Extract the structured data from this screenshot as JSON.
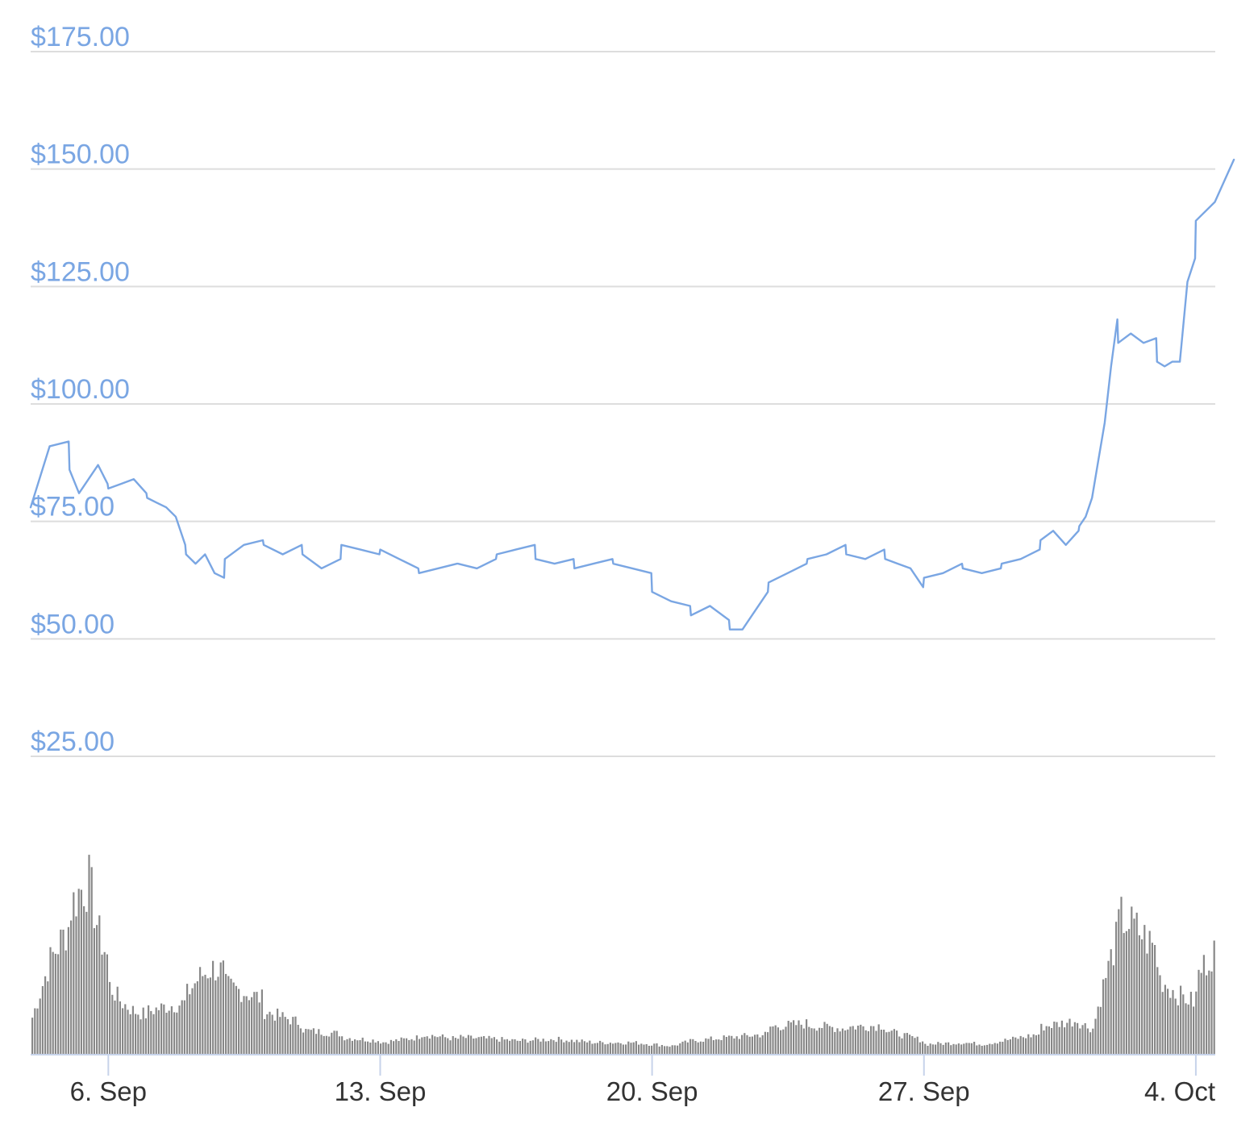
{
  "chart_data": {
    "type": "line",
    "title": "",
    "xlabel": "",
    "ylabel": "",
    "grid": true,
    "colors": {
      "price_line": "#7aa6e3",
      "gridline": "#dddddd",
      "volume_bars": "#888888",
      "axis": "#c7d3ea",
      "y_tick_text": "#7aa6e3",
      "x_tick_text": "#333333"
    },
    "y_axis": {
      "min": 25,
      "max": 175,
      "ticks": [
        175,
        150,
        125,
        100,
        75,
        50,
        25
      ],
      "tick_labels": [
        "$175.00",
        "$150.00",
        "$125.00",
        "$100.00",
        "$75.00",
        "$50.00",
        "$25.00"
      ]
    },
    "x_axis": {
      "start": "2019-09-04",
      "end": "2019-10-04",
      "ticks": [
        "2019-09-06",
        "2019-09-13",
        "2019-09-20",
        "2019-09-27",
        "2019-10-04"
      ],
      "tick_labels": [
        "6. Sep",
        "13. Sep",
        "20. Sep",
        "27. Sep",
        "4. Oct"
      ]
    },
    "series": [
      {
        "kind": "price",
        "points": [
          [
            "2019-09-04",
            78
          ],
          [
            "2019-09-04",
            91
          ],
          [
            "2019-09-04",
            92
          ],
          [
            "2019-09-05",
            86
          ],
          [
            "2019-09-05",
            81
          ],
          [
            "2019-09-05",
            84
          ],
          [
            "2019-09-05",
            87
          ],
          [
            "2019-09-05",
            83
          ],
          [
            "2019-09-06",
            82
          ],
          [
            "2019-09-06",
            83
          ],
          [
            "2019-09-06",
            84
          ],
          [
            "2019-09-06",
            81
          ],
          [
            "2019-09-07",
            80
          ],
          [
            "2019-09-07",
            79
          ],
          [
            "2019-09-07",
            78
          ],
          [
            "2019-09-07",
            76
          ],
          [
            "2019-09-07",
            70
          ],
          [
            "2019-09-08",
            68
          ],
          [
            "2019-09-08",
            66
          ],
          [
            "2019-09-08",
            68
          ],
          [
            "2019-09-08",
            64
          ],
          [
            "2019-09-08",
            63
          ],
          [
            "2019-09-09",
            67
          ],
          [
            "2019-09-09",
            70
          ],
          [
            "2019-09-09",
            71
          ],
          [
            "2019-09-10",
            70
          ],
          [
            "2019-09-10",
            68
          ],
          [
            "2019-09-10",
            70
          ],
          [
            "2019-09-11",
            68
          ],
          [
            "2019-09-11",
            65
          ],
          [
            "2019-09-11",
            67
          ],
          [
            "2019-09-12",
            70
          ],
          [
            "2019-09-12",
            69
          ],
          [
            "2019-09-12",
            68
          ],
          [
            "2019-09-13",
            69
          ],
          [
            "2019-09-13",
            67
          ],
          [
            "2019-09-13",
            65
          ],
          [
            "2019-09-14",
            64
          ],
          [
            "2019-09-14",
            65
          ],
          [
            "2019-09-14",
            66
          ],
          [
            "2019-09-15",
            66
          ],
          [
            "2019-09-15",
            65
          ],
          [
            "2019-09-15",
            67
          ],
          [
            "2019-09-16",
            68
          ],
          [
            "2019-09-16",
            69
          ],
          [
            "2019-09-16",
            70
          ],
          [
            "2019-09-17",
            67
          ],
          [
            "2019-09-17",
            66
          ],
          [
            "2019-09-17",
            67
          ],
          [
            "2019-09-18",
            65
          ],
          [
            "2019-09-18",
            66
          ],
          [
            "2019-09-18",
            67
          ],
          [
            "2019-09-19",
            66
          ],
          [
            "2019-09-19",
            65
          ],
          [
            "2019-09-19",
            64
          ],
          [
            "2019-09-20",
            60
          ],
          [
            "2019-09-20",
            58
          ],
          [
            "2019-09-20",
            57
          ],
          [
            "2019-09-21",
            55
          ],
          [
            "2019-09-21",
            57
          ],
          [
            "2019-09-21",
            54
          ],
          [
            "2019-09-22",
            52
          ],
          [
            "2019-09-22",
            52
          ],
          [
            "2019-09-22",
            56
          ],
          [
            "2019-09-22",
            60
          ],
          [
            "2019-09-23",
            62
          ],
          [
            "2019-09-23",
            64
          ],
          [
            "2019-09-23",
            66
          ],
          [
            "2019-09-24",
            67
          ],
          [
            "2019-09-24",
            68
          ],
          [
            "2019-09-24",
            70
          ],
          [
            "2019-09-25",
            68
          ],
          [
            "2019-09-25",
            67
          ],
          [
            "2019-09-25",
            69
          ],
          [
            "2019-09-26",
            67
          ],
          [
            "2019-09-26",
            66
          ],
          [
            "2019-09-26",
            65
          ],
          [
            "2019-09-26",
            61
          ],
          [
            "2019-09-27",
            63
          ],
          [
            "2019-09-27",
            64
          ],
          [
            "2019-09-27",
            66
          ],
          [
            "2019-09-28",
            65
          ],
          [
            "2019-09-28",
            64
          ],
          [
            "2019-09-28",
            65
          ],
          [
            "2019-09-29",
            66
          ],
          [
            "2019-09-29",
            67
          ],
          [
            "2019-09-29",
            69
          ],
          [
            "2019-09-30",
            71
          ],
          [
            "2019-09-30",
            73
          ],
          [
            "2019-09-30",
            70
          ],
          [
            "2019-09-30",
            73
          ],
          [
            "2019-10-01",
            74
          ],
          [
            "2019-10-01",
            76
          ],
          [
            "2019-10-01",
            80
          ],
          [
            "2019-10-01",
            88
          ],
          [
            "2019-10-01",
            96
          ],
          [
            "2019-10-01",
            108
          ],
          [
            "2019-10-01",
            118
          ],
          [
            "2019-10-02",
            113
          ],
          [
            "2019-10-02",
            115
          ],
          [
            "2019-10-02",
            113
          ],
          [
            "2019-10-02",
            114
          ],
          [
            "2019-10-03",
            109
          ],
          [
            "2019-10-03",
            108
          ],
          [
            "2019-10-03",
            109
          ],
          [
            "2019-10-03",
            109
          ],
          [
            "2019-10-03",
            126
          ],
          [
            "2019-10-03",
            131
          ],
          [
            "2019-10-04",
            139
          ],
          [
            "2019-10-04",
            143
          ],
          [
            "2019-10-04",
            152
          ]
        ]
      },
      {
        "kind": "volume",
        "points": [
          [
            "2019-09-04",
            0.2
          ],
          [
            "2019-09-04",
            0.55
          ],
          [
            "2019-09-04",
            0.75
          ],
          [
            "2019-09-05",
            0.85
          ],
          [
            "2019-09-05",
            0.95
          ],
          [
            "2019-09-05",
            1.0
          ],
          [
            "2019-09-05",
            0.7
          ],
          [
            "2019-09-05",
            0.55
          ],
          [
            "2019-09-06",
            0.4
          ],
          [
            "2019-09-06",
            0.3
          ],
          [
            "2019-09-06",
            0.25
          ],
          [
            "2019-09-06",
            0.23
          ],
          [
            "2019-09-07",
            0.25
          ],
          [
            "2019-09-07",
            0.28
          ],
          [
            "2019-09-07",
            0.3
          ],
          [
            "2019-09-08",
            0.35
          ],
          [
            "2019-09-08",
            0.45
          ],
          [
            "2019-09-08",
            0.5
          ],
          [
            "2019-09-08",
            0.48
          ],
          [
            "2019-09-09",
            0.4
          ],
          [
            "2019-09-09",
            0.32
          ],
          [
            "2019-09-10",
            0.25
          ],
          [
            "2019-09-10",
            0.18
          ],
          [
            "2019-09-11",
            0.14
          ],
          [
            "2019-09-11",
            0.12
          ],
          [
            "2019-09-12",
            0.1
          ],
          [
            "2019-09-12",
            0.08
          ],
          [
            "2019-09-13",
            0.07
          ],
          [
            "2019-09-13",
            0.1
          ],
          [
            "2019-09-14",
            0.12
          ],
          [
            "2019-09-14",
            0.09
          ],
          [
            "2019-09-15",
            0.1
          ],
          [
            "2019-09-15",
            0.09
          ],
          [
            "2019-09-16",
            0.08
          ],
          [
            "2019-09-17",
            0.09
          ],
          [
            "2019-09-18",
            0.07
          ],
          [
            "2019-09-19",
            0.07
          ],
          [
            "2019-09-20",
            0.05
          ],
          [
            "2019-09-21",
            0.08
          ],
          [
            "2019-09-21",
            0.1
          ],
          [
            "2019-09-22",
            0.1
          ],
          [
            "2019-09-22",
            0.12
          ],
          [
            "2019-09-23",
            0.16
          ],
          [
            "2019-09-23",
            0.18
          ],
          [
            "2019-09-24",
            0.17
          ],
          [
            "2019-09-24",
            0.15
          ],
          [
            "2019-09-25",
            0.16
          ],
          [
            "2019-09-25",
            0.17
          ],
          [
            "2019-09-26",
            0.14
          ],
          [
            "2019-09-26",
            0.08
          ],
          [
            "2019-09-27",
            0.06
          ],
          [
            "2019-09-27",
            0.07
          ],
          [
            "2019-09-28",
            0.06
          ],
          [
            "2019-09-29",
            0.08
          ],
          [
            "2019-09-29",
            0.12
          ],
          [
            "2019-09-30",
            0.16
          ],
          [
            "2019-09-30",
            0.18
          ],
          [
            "2019-09-30",
            0.2
          ],
          [
            "2019-10-01",
            0.18
          ],
          [
            "2019-10-01",
            0.15
          ],
          [
            "2019-10-01",
            0.45
          ],
          [
            "2019-10-01",
            0.7
          ],
          [
            "2019-10-02",
            0.8
          ],
          [
            "2019-10-02",
            0.72
          ],
          [
            "2019-10-02",
            0.6
          ],
          [
            "2019-10-03",
            0.45
          ],
          [
            "2019-10-03",
            0.35
          ],
          [
            "2019-10-03",
            0.3
          ],
          [
            "2019-10-04",
            0.45
          ],
          [
            "2019-10-04",
            0.62
          ],
          [
            "2019-10-04",
            0.92
          ]
        ]
      }
    ]
  }
}
